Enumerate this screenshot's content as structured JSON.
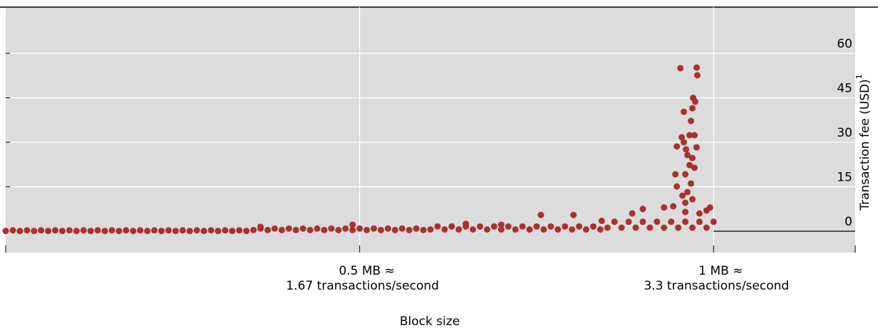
{
  "chart_data": {
    "type": "scatter",
    "x_label": "Block size",
    "y_label": "Transaction fee (USD)",
    "y_label_note": "1",
    "xlim": [
      0,
      1.2
    ],
    "ylim": [
      -7.2,
      75.6
    ],
    "xticks": [
      {
        "value": 0.5,
        "label": "0.5 MB ≈",
        "sublabel": "1.67 transactions/second"
      },
      {
        "value": 1,
        "label": "1 MB   ≈",
        "sublabel": "3.3 transactions/second"
      }
    ],
    "yticks": [
      0,
      15,
      30,
      45,
      60
    ],
    "grid": true,
    "color": "#a8322f",
    "x": [
      0,
      0.01,
      0.02,
      0.03,
      0.04,
      0.05,
      0.06,
      0.07,
      0.08,
      0.09,
      0.1,
      0.11,
      0.12,
      0.13,
      0.14,
      0.15,
      0.16,
      0.17,
      0.18,
      0.19,
      0.2,
      0.21,
      0.22,
      0.23,
      0.24,
      0.25,
      0.26,
      0.27,
      0.28,
      0.29,
      0.3,
      0.31,
      0.32,
      0.33,
      0.34,
      0.35,
      0.36,
      0.37,
      0.38,
      0.39,
      0.4,
      0.41,
      0.42,
      0.43,
      0.44,
      0.45,
      0.46,
      0.47,
      0.48,
      0.49,
      0.5,
      0.51,
      0.52,
      0.53,
      0.54,
      0.55,
      0.56,
      0.57,
      0.58,
      0.59,
      0.6,
      0.61,
      0.62,
      0.63,
      0.64,
      0.65,
      0.66,
      0.67,
      0.68,
      0.69,
      0.7,
      0.71,
      0.72,
      0.73,
      0.74,
      0.75,
      0.76,
      0.77,
      0.78,
      0.79,
      0.8,
      0.81,
      0.82,
      0.83,
      0.84,
      0.85,
      0.86,
      0.87,
      0.88,
      0.89,
      0.9,
      0.91,
      0.92,
      0.93,
      0.94,
      0.95,
      0.96,
      0.97,
      0.98,
      0.99,
      1,
      0.756,
      0.802,
      0.842,
      0.885,
      0.9,
      0.93,
      0.99,
      0.995,
      0.98,
      0.96,
      0.36,
      0.49,
      0.65,
      0.7,
      0.953,
      0.976,
      0.977,
      0.971,
      0.974,
      0.97,
      0.958,
      0.968,
      0.955,
      0.973,
      0.966,
      0.958,
      0.948,
      0.961,
      0.976,
      0.963,
      0.97,
      0.966,
      0.973,
      0.96,
      0.946,
      0.968,
      0.948,
      0.963,
      0.956,
      0.97,
      0.943,
      0.96
    ],
    "y": [
      0.1,
      0.3,
      0.1,
      0.3,
      0.1,
      0.3,
      0.1,
      0.3,
      0.1,
      0.3,
      0.1,
      0.3,
      0.1,
      0.3,
      0.1,
      0.3,
      0.1,
      0.3,
      0.1,
      0.3,
      0.1,
      0.3,
      0.1,
      0.3,
      0.1,
      0.3,
      0.1,
      0.3,
      0.1,
      0.3,
      0.1,
      0.3,
      0.1,
      0.3,
      0.1,
      0.4,
      0.9,
      0.4,
      0.9,
      0.4,
      0.9,
      0.4,
      0.9,
      0.4,
      0.9,
      0.4,
      0.9,
      0.4,
      0.9,
      0.4,
      0.9,
      0.4,
      0.9,
      0.4,
      0.9,
      0.4,
      0.9,
      0.4,
      0.9,
      0.4,
      0.6,
      1.6,
      0.6,
      1.6,
      0.6,
      1.6,
      0.6,
      1.6,
      0.6,
      1.6,
      0.6,
      1.6,
      0.6,
      1.6,
      0.6,
      1.6,
      0.6,
      1.6,
      0.6,
      1.6,
      0.6,
      1.6,
      0.6,
      1.6,
      0.6,
      1.2,
      3.2,
      1.2,
      3.2,
      1.2,
      3.2,
      1.2,
      3.2,
      1.2,
      3.2,
      1.2,
      3.2,
      1.2,
      3.2,
      1.2,
      3.2,
      5.5,
      5.5,
      3.5,
      6,
      7.5,
      8,
      7,
      8,
      6,
      6.5,
      1.5,
      2.2,
      2.5,
      2.2,
      55,
      55.2,
      52.6,
      45,
      43.7,
      41.5,
      40.3,
      37.2,
      31.7,
      32.4,
      32.4,
      30,
      28.6,
      27.6,
      28.3,
      25.7,
      24.7,
      22.3,
      21.4,
      19.2,
      19.2,
      16.1,
      15.1,
      13.2,
      12,
      10.8,
      8.4,
      9.6
    ]
  }
}
